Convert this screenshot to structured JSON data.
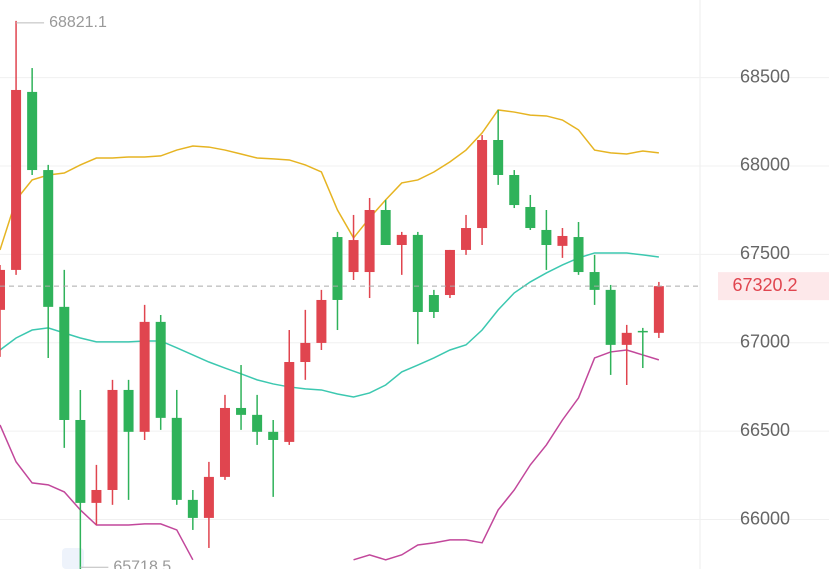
{
  "chart_data": {
    "type": "candlestick",
    "up_color": "#e0454f",
    "down_color": "#2fb25a",
    "open": [
      67186,
      67412,
      68419,
      67977,
      67203,
      66563,
      66094,
      66167,
      66733,
      66496,
      67118,
      66575,
      66111,
      66009,
      66241,
      66631,
      66592,
      66496,
      66439,
      66891,
      66999,
      67598,
      67400,
      67400,
      67751,
      67553,
      67610,
      67270,
      67270,
      67525,
      67649,
      68147,
      67949,
      67768,
      67638,
      67548,
      67598,
      67400,
      67299,
      66988,
      67067,
      67056
    ],
    "high": [
      67440,
      68821.1,
      68554,
      68006,
      67412,
      66733,
      66309,
      66790,
      66790,
      67214,
      67157,
      66733,
      66167,
      66326,
      66705,
      66874,
      66705,
      66563,
      67072,
      67186,
      67299,
      67627,
      67723,
      67819,
      67808,
      67627,
      67627,
      67299,
      67525,
      67723,
      68175,
      68317,
      67977,
      67836,
      67751,
      67649,
      67683,
      67497,
      67327,
      67101,
      67084,
      67344
    ],
    "low": [
      66920,
      67384,
      67949,
      66914,
      66405,
      65718.5,
      65970,
      66083,
      66111,
      66450,
      66507,
      66083,
      65941,
      65839,
      66224,
      66507,
      66422,
      66128,
      66422,
      66790,
      66959,
      67072,
      67355,
      67253,
      67553,
      67384,
      66992,
      67140,
      67253,
      67497,
      67553,
      67893,
      67762,
      67638,
      67412,
      67480,
      67384,
      67214,
      66818,
      66761,
      66857,
      67027
    ],
    "close": [
      67412,
      68430,
      67977,
      67203,
      66563,
      66094,
      66167,
      66733,
      66496,
      67118,
      66575,
      66111,
      66009,
      66241,
      66631,
      66592,
      66496,
      66450,
      66891,
      66999,
      67242,
      67242,
      67581,
      67751,
      67553,
      67610,
      67174,
      67174,
      67525,
      67649,
      68147,
      67949,
      67779,
      67649,
      67553,
      67604,
      67400,
      67299,
      66988,
      67056,
      67061,
      67320.2
    ],
    "overlays": [
      {
        "color": "#e6b422",
        "values": [
          67525,
          67808,
          67921,
          67949,
          67960,
          68006,
          68045,
          68045,
          68051,
          68051,
          68057,
          68090,
          68113,
          68107,
          68090,
          68068,
          68045,
          68040,
          68034,
          68006,
          67966,
          67751,
          67593,
          67706,
          67808,
          67904,
          67921,
          67966,
          68023,
          68090,
          68187,
          68317,
          68305,
          68288,
          68283,
          68260,
          68204,
          68090,
          68074,
          68068,
          68085,
          68074
        ]
      },
      {
        "color": "#3cc8b0",
        "values": [
          66959,
          67027,
          67072,
          67084,
          67055,
          67027,
          67005,
          67005,
          67005,
          67010,
          67010,
          66971,
          66931,
          66891,
          66857,
          66824,
          66790,
          66767,
          66750,
          66739,
          66733,
          66710,
          66693,
          66716,
          66761,
          66835,
          66874,
          66914,
          66959,
          66988,
          67072,
          67186,
          67282,
          67344,
          67395,
          67440,
          67480,
          67508,
          67508,
          67508,
          67497,
          67485
        ]
      },
      {
        "color": "#c2479b",
        "values": [
          66535,
          66326,
          66207,
          66196,
          66156,
          66054,
          65969,
          65969,
          65969,
          65975,
          65975,
          65941,
          65772,
          null,
          null,
          null,
          null,
          null,
          null,
          null,
          null,
          null,
          65772,
          65800,
          65772,
          65800,
          65856,
          65868,
          65885,
          65885,
          65868,
          66054,
          66167,
          66309,
          66422,
          66563,
          66688,
          66914,
          66948,
          66959,
          66931,
          66903
        ]
      }
    ],
    "ylim": [
      65720,
      68939
    ],
    "yticks": [
      66000,
      66500,
      67000,
      67500,
      68000,
      68500
    ],
    "grid": true
  }
}
